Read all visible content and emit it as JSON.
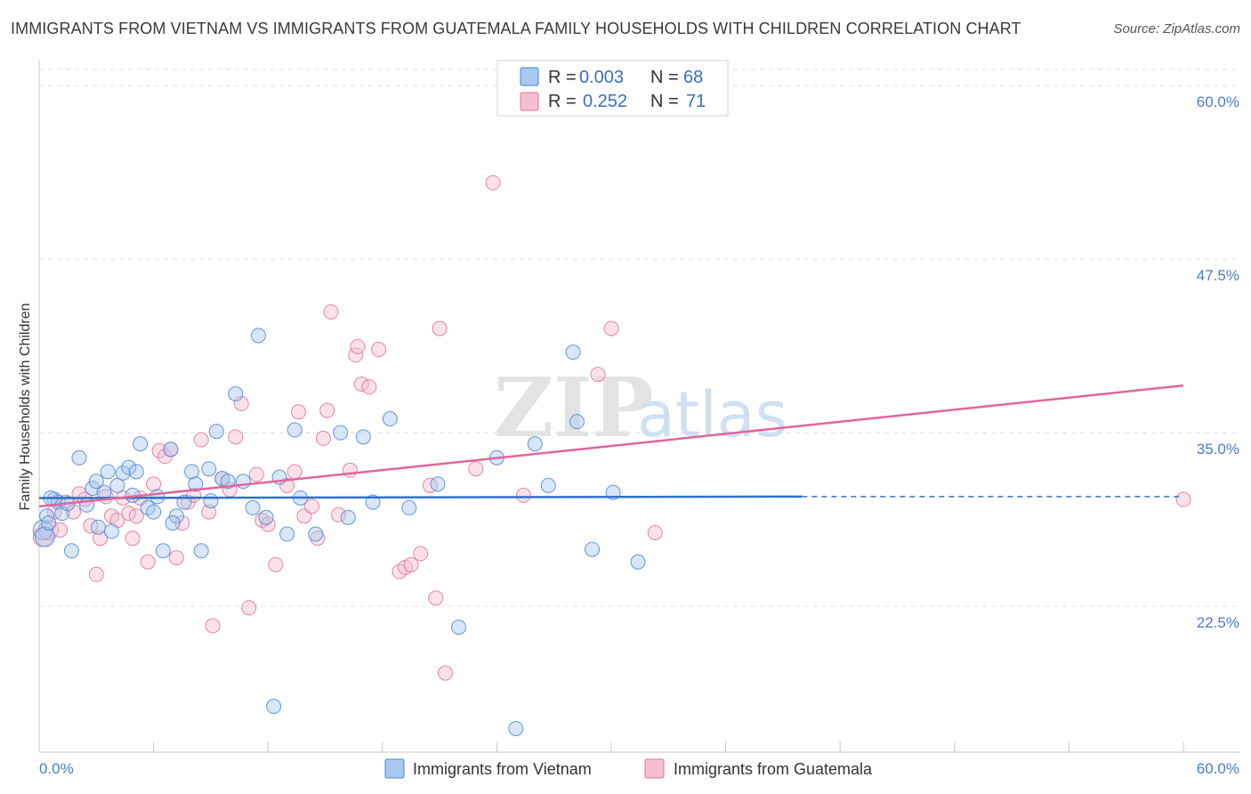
{
  "title": "IMMIGRANTS FROM VIETNAM VS IMMIGRANTS FROM GUATEMALA FAMILY HOUSEHOLDS WITH CHILDREN CORRELATION CHART",
  "source": "Source: ZipAtlas.com",
  "watermark": {
    "zip": "ZIP",
    "atlas": "atlas"
  },
  "colors": {
    "vietnam": "#4a86d8",
    "vietnam_fill": "#a9c8ee",
    "guatemala": "#e2729a",
    "guatemala_fill": "#f6bfd0",
    "tick_text": "#4a7cc9",
    "grid": "#dddddd"
  },
  "legend": {
    "rows": [
      {
        "r_label": "R =",
        "r_value": "0.003",
        "n_label": "N =",
        "n_value": "68"
      },
      {
        "r_label": "R =",
        "r_value": "0.252",
        "n_label": "N =",
        "n_value": "71"
      }
    ]
  },
  "chart_data": {
    "type": "scatter",
    "title": "IMMIGRANTS FROM VIETNAM VS IMMIGRANTS FROM GUATEMALA FAMILY HOUSEHOLDS WITH CHILDREN CORRELATION CHART",
    "xlabel": "",
    "ylabel": "Family Households with Children",
    "xlim": [
      0,
      60
    ],
    "ylim": [
      12,
      61.8
    ],
    "x_tick_labels": [
      "0.0%",
      "60.0%"
    ],
    "y_ticks": [
      22.5,
      35.0,
      47.5,
      60.0
    ],
    "y_tick_labels": [
      "22.5%",
      "35.0%",
      "47.5%",
      "60.0%"
    ],
    "series": [
      {
        "name": "Immigrants from Vietnam",
        "r": 0.003,
        "n": 68,
        "trend": {
          "x_start": 0,
          "x_end": 40,
          "y_start": 30.3,
          "y_end": 30.4,
          "dashed_to": 60
        },
        "points": [
          [
            0.2,
            28.0
          ],
          [
            0.3,
            27.5
          ],
          [
            0.4,
            29.0
          ],
          [
            0.5,
            28.5
          ],
          [
            0.8,
            30.2
          ],
          [
            1.0,
            30.0
          ],
          [
            1.2,
            29.2
          ],
          [
            1.7,
            26.5
          ],
          [
            2.1,
            33.2
          ],
          [
            2.5,
            29.8
          ],
          [
            2.8,
            31.0
          ],
          [
            3.1,
            28.2
          ],
          [
            3.4,
            30.7
          ],
          [
            3.6,
            32.2
          ],
          [
            3.8,
            27.9
          ],
          [
            4.1,
            31.2
          ],
          [
            4.4,
            32.1
          ],
          [
            4.7,
            32.5
          ],
          [
            4.9,
            30.5
          ],
          [
            5.1,
            32.2
          ],
          [
            5.3,
            34.2
          ],
          [
            5.7,
            29.6
          ],
          [
            6.0,
            29.3
          ],
          [
            6.2,
            30.4
          ],
          [
            6.5,
            26.5
          ],
          [
            6.9,
            33.8
          ],
          [
            7.2,
            29.0
          ],
          [
            7.6,
            30.0
          ],
          [
            8.0,
            32.2
          ],
          [
            8.2,
            31.3
          ],
          [
            8.5,
            26.5
          ],
          [
            8.9,
            32.4
          ],
          [
            9.3,
            35.1
          ],
          [
            9.6,
            31.7
          ],
          [
            9.9,
            31.5
          ],
          [
            10.3,
            37.8
          ],
          [
            10.7,
            31.5
          ],
          [
            11.2,
            29.6
          ],
          [
            11.5,
            42.0
          ],
          [
            11.9,
            28.9
          ],
          [
            12.3,
            15.3
          ],
          [
            12.6,
            31.8
          ],
          [
            13.0,
            27.7
          ],
          [
            13.4,
            35.2
          ],
          [
            13.7,
            30.3
          ],
          [
            14.5,
            27.7
          ],
          [
            15.8,
            35.0
          ],
          [
            16.2,
            28.9
          ],
          [
            17.0,
            34.7
          ],
          [
            17.5,
            30.0
          ],
          [
            18.4,
            36.0
          ],
          [
            19.4,
            29.6
          ],
          [
            20.9,
            31.3
          ],
          [
            22.0,
            21.0
          ],
          [
            24.0,
            33.2
          ],
          [
            25.0,
            13.7
          ],
          [
            26.0,
            34.2
          ],
          [
            26.7,
            31.2
          ],
          [
            28.0,
            40.8
          ],
          [
            28.2,
            35.8
          ],
          [
            29.0,
            26.6
          ],
          [
            30.1,
            30.7
          ],
          [
            31.4,
            25.7
          ],
          [
            0.6,
            30.3
          ],
          [
            1.5,
            29.9
          ],
          [
            9.0,
            30.1
          ],
          [
            3.0,
            31.5
          ],
          [
            7.0,
            28.5
          ]
        ]
      },
      {
        "name": "Immigrants from Guatemala",
        "r": 0.252,
        "n": 71,
        "trend": {
          "x_start": 0,
          "x_end": 60,
          "y_start": 29.7,
          "y_end": 38.4
        },
        "points": [
          [
            0.2,
            27.5
          ],
          [
            0.5,
            28.0
          ],
          [
            0.8,
            29.3
          ],
          [
            1.1,
            28.0
          ],
          [
            1.4,
            30.0
          ],
          [
            1.8,
            29.3
          ],
          [
            2.1,
            30.6
          ],
          [
            2.4,
            30.2
          ],
          [
            2.7,
            28.3
          ],
          [
            3.0,
            24.8
          ],
          [
            3.2,
            27.4
          ],
          [
            3.5,
            30.4
          ],
          [
            3.8,
            29.0
          ],
          [
            4.1,
            28.7
          ],
          [
            4.4,
            30.3
          ],
          [
            4.7,
            29.2
          ],
          [
            4.9,
            27.4
          ],
          [
            5.1,
            29.0
          ],
          [
            5.3,
            30.3
          ],
          [
            5.7,
            25.7
          ],
          [
            6.0,
            31.3
          ],
          [
            6.3,
            33.7
          ],
          [
            6.6,
            33.3
          ],
          [
            6.9,
            33.8
          ],
          [
            7.2,
            26.0
          ],
          [
            7.5,
            28.5
          ],
          [
            7.8,
            30.0
          ],
          [
            8.1,
            30.5
          ],
          [
            8.5,
            34.5
          ],
          [
            8.9,
            29.3
          ],
          [
            9.1,
            21.1
          ],
          [
            9.6,
            31.7
          ],
          [
            10.0,
            30.9
          ],
          [
            10.3,
            34.7
          ],
          [
            10.6,
            37.1
          ],
          [
            11.0,
            22.4
          ],
          [
            11.4,
            32.0
          ],
          [
            11.7,
            28.7
          ],
          [
            12.0,
            28.4
          ],
          [
            12.4,
            25.5
          ],
          [
            13.0,
            31.2
          ],
          [
            13.4,
            32.2
          ],
          [
            13.6,
            36.5
          ],
          [
            13.9,
            29.0
          ],
          [
            14.3,
            29.7
          ],
          [
            14.6,
            27.4
          ],
          [
            14.9,
            34.6
          ],
          [
            15.1,
            36.6
          ],
          [
            15.3,
            43.7
          ],
          [
            15.7,
            29.1
          ],
          [
            16.3,
            32.3
          ],
          [
            16.6,
            40.6
          ],
          [
            16.9,
            38.5
          ],
          [
            17.3,
            38.3
          ],
          [
            17.8,
            41.0
          ],
          [
            18.9,
            25.0
          ],
          [
            19.2,
            25.3
          ],
          [
            19.5,
            25.5
          ],
          [
            20.0,
            26.3
          ],
          [
            20.5,
            31.2
          ],
          [
            20.8,
            23.1
          ],
          [
            21.3,
            17.7
          ],
          [
            22.9,
            32.4
          ],
          [
            23.8,
            53.0
          ],
          [
            25.4,
            30.5
          ],
          [
            29.3,
            39.2
          ],
          [
            30.0,
            42.5
          ],
          [
            32.3,
            27.8
          ],
          [
            60.0,
            30.2
          ],
          [
            21.0,
            42.5
          ],
          [
            16.7,
            41.2
          ]
        ]
      }
    ]
  }
}
